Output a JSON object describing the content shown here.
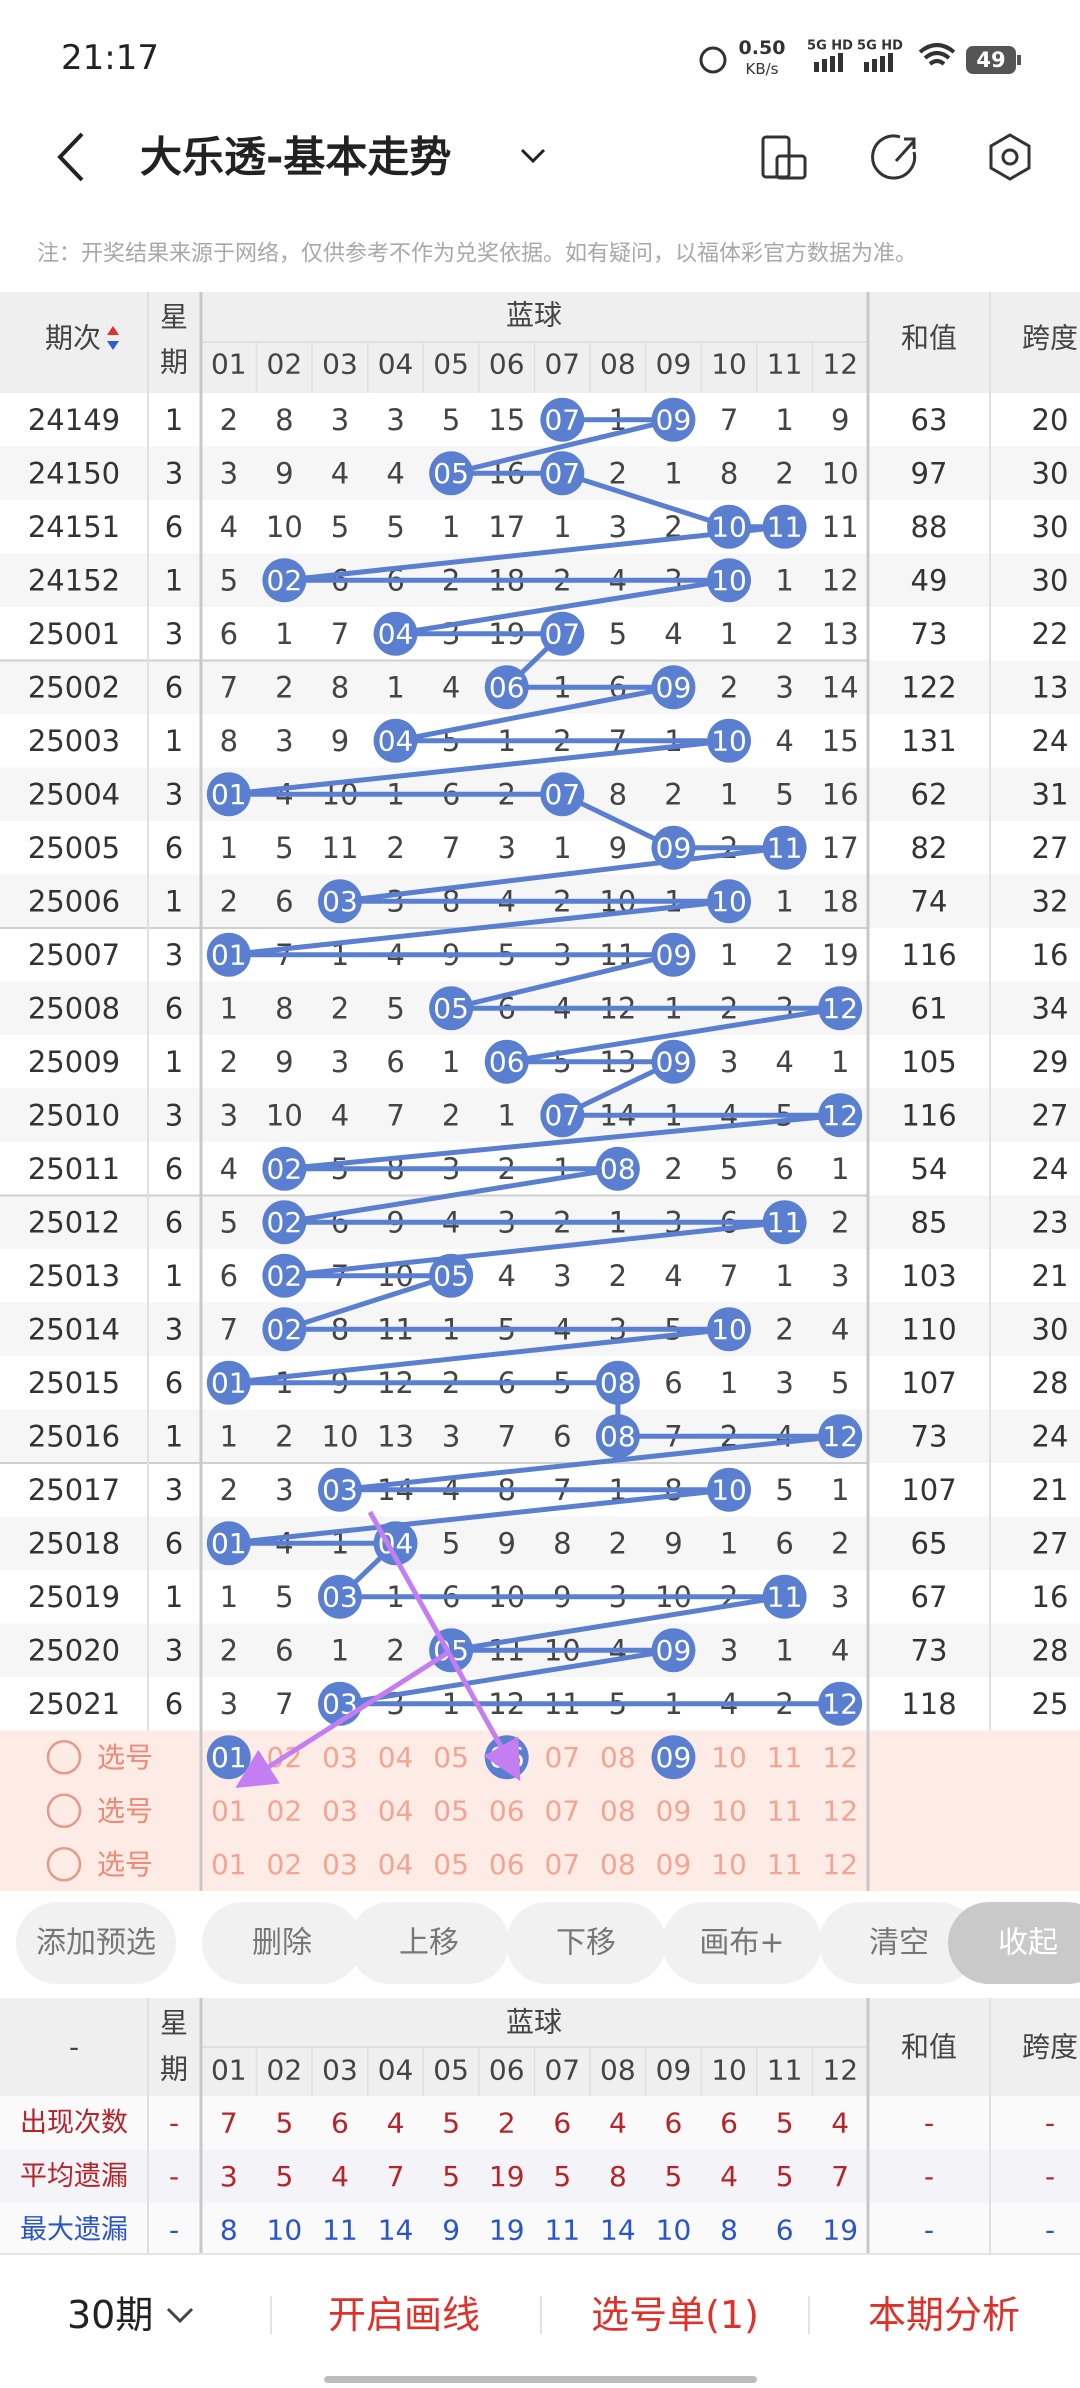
{
  "status_bar": {
    "time": "21:17",
    "net_speed": "0.50",
    "net_unit": "KB/s",
    "signal_1": "5G HD",
    "signal_2": "5G HD",
    "battery": "49"
  },
  "header": {
    "title": "大乐透-基本走势"
  },
  "notice": "注：开奖结果来源于网络，仅供参考不作为兑奖依据。如有疑问，以福体彩官方数据为准。",
  "trend_table": {
    "headers": {
      "period": "期次",
      "weekday_1": "星",
      "weekday_2": "期",
      "blue": "蓝球",
      "sum": "和值",
      "span": "跨度"
    },
    "columns": [
      "01",
      "02",
      "03",
      "04",
      "05",
      "06",
      "07",
      "08",
      "09",
      "10",
      "11",
      "12"
    ],
    "rows": [
      {
        "period": 24149,
        "weekday": 1,
        "cells": [
          2,
          8,
          3,
          3,
          5,
          15,
          "07",
          1,
          "09",
          7,
          1,
          9
        ],
        "sum": 63,
        "span": 20
      },
      {
        "period": 24150,
        "weekday": 3,
        "cells": [
          3,
          9,
          4,
          4,
          "05",
          16,
          "07",
          2,
          1,
          8,
          2,
          10
        ],
        "sum": 97,
        "span": 30
      },
      {
        "period": 24151,
        "weekday": 6,
        "cells": [
          4,
          10,
          5,
          5,
          1,
          17,
          1,
          3,
          2,
          "10",
          "11",
          11
        ],
        "sum": 88,
        "span": 30
      },
      {
        "period": 24152,
        "weekday": 1,
        "cells": [
          5,
          "02",
          6,
          6,
          2,
          18,
          2,
          4,
          3,
          "10",
          1,
          12
        ],
        "sum": 49,
        "span": 30
      },
      {
        "period": 25001,
        "weekday": 3,
        "cells": [
          6,
          1,
          7,
          "04",
          3,
          19,
          "07",
          5,
          4,
          1,
          2,
          13
        ],
        "sum": 73,
        "span": 22
      },
      {
        "period": 25002,
        "weekday": 6,
        "cells": [
          7,
          2,
          8,
          1,
          4,
          "06",
          1,
          6,
          "09",
          2,
          3,
          14
        ],
        "sum": 122,
        "span": 13
      },
      {
        "period": 25003,
        "weekday": 1,
        "cells": [
          8,
          3,
          9,
          "04",
          5,
          1,
          2,
          7,
          1,
          "10",
          4,
          15
        ],
        "sum": 131,
        "span": 24
      },
      {
        "period": 25004,
        "weekday": 3,
        "cells": [
          "01",
          4,
          10,
          1,
          6,
          2,
          "07",
          8,
          2,
          1,
          5,
          16
        ],
        "sum": 62,
        "span": 31
      },
      {
        "period": 25005,
        "weekday": 6,
        "cells": [
          1,
          5,
          11,
          2,
          7,
          3,
          1,
          9,
          "09",
          2,
          "11",
          17
        ],
        "sum": 82,
        "span": 27
      },
      {
        "period": 25006,
        "weekday": 1,
        "cells": [
          2,
          6,
          "03",
          3,
          8,
          4,
          2,
          10,
          1,
          "10",
          1,
          18
        ],
        "sum": 74,
        "span": 32
      },
      {
        "period": 25007,
        "weekday": 3,
        "cells": [
          "01",
          7,
          1,
          4,
          9,
          5,
          3,
          11,
          "09",
          1,
          2,
          19
        ],
        "sum": 116,
        "span": 16
      },
      {
        "period": 25008,
        "weekday": 6,
        "cells": [
          1,
          8,
          2,
          5,
          "05",
          6,
          4,
          12,
          1,
          2,
          3,
          "12"
        ],
        "sum": 61,
        "span": 34
      },
      {
        "period": 25009,
        "weekday": 1,
        "cells": [
          2,
          9,
          3,
          6,
          1,
          "06",
          5,
          13,
          "09",
          3,
          4,
          1
        ],
        "sum": 105,
        "span": 29
      },
      {
        "period": 25010,
        "weekday": 3,
        "cells": [
          3,
          10,
          4,
          7,
          2,
          1,
          "07",
          14,
          1,
          4,
          5,
          "12"
        ],
        "sum": 116,
        "span": 27
      },
      {
        "period": 25011,
        "weekday": 6,
        "cells": [
          4,
          "02",
          5,
          8,
          3,
          2,
          1,
          "08",
          2,
          5,
          6,
          1
        ],
        "sum": 54,
        "span": 24
      },
      {
        "period": 25012,
        "weekday": 6,
        "cells": [
          5,
          "02",
          6,
          9,
          4,
          3,
          2,
          1,
          3,
          6,
          "11",
          2
        ],
        "sum": 85,
        "span": 23
      },
      {
        "period": 25013,
        "weekday": 1,
        "cells": [
          6,
          "02",
          7,
          10,
          "05",
          4,
          3,
          2,
          4,
          7,
          1,
          3
        ],
        "sum": 103,
        "span": 21
      },
      {
        "period": 25014,
        "weekday": 3,
        "cells": [
          7,
          "02",
          8,
          11,
          1,
          5,
          4,
          3,
          5,
          "10",
          2,
          4
        ],
        "sum": 110,
        "span": 30
      },
      {
        "period": 25015,
        "weekday": 6,
        "cells": [
          "01",
          1,
          9,
          12,
          2,
          6,
          5,
          "08",
          6,
          1,
          3,
          5
        ],
        "sum": 107,
        "span": 28
      },
      {
        "period": 25016,
        "weekday": 1,
        "cells": [
          1,
          2,
          10,
          13,
          3,
          7,
          6,
          "08",
          7,
          2,
          4,
          "12"
        ],
        "sum": 73,
        "span": 24
      },
      {
        "period": 25017,
        "weekday": 3,
        "cells": [
          2,
          3,
          "03",
          14,
          4,
          8,
          7,
          1,
          8,
          "10",
          5,
          1
        ],
        "sum": 107,
        "span": 21
      },
      {
        "period": 25018,
        "weekday": 6,
        "cells": [
          "01",
          4,
          1,
          "04",
          5,
          9,
          8,
          2,
          9,
          1,
          6,
          2
        ],
        "sum": 65,
        "span": 27
      },
      {
        "period": 25019,
        "weekday": 1,
        "cells": [
          1,
          5,
          "03",
          1,
          6,
          10,
          9,
          3,
          10,
          2,
          "11",
          3
        ],
        "sum": 67,
        "span": 16
      },
      {
        "period": 25020,
        "weekday": 3,
        "cells": [
          2,
          6,
          1,
          2,
          "05",
          11,
          10,
          4,
          "09",
          3,
          1,
          4
        ],
        "sum": 73,
        "span": 28
      },
      {
        "period": 25021,
        "weekday": 6,
        "cells": [
          3,
          7,
          "03",
          3,
          1,
          12,
          11,
          5,
          1,
          4,
          2,
          "12"
        ],
        "sum": 118,
        "span": 25
      }
    ]
  },
  "selection": [
    {
      "label": "选号",
      "selected": [
        true,
        false,
        false,
        false,
        false,
        true,
        false,
        false,
        true,
        false,
        false,
        false
      ]
    },
    {
      "label": "选号",
      "selected": [
        false,
        false,
        false,
        false,
        false,
        false,
        false,
        false,
        false,
        false,
        false,
        false
      ]
    },
    {
      "label": "选号",
      "selected": [
        false,
        false,
        false,
        false,
        false,
        false,
        false,
        false,
        false,
        false,
        false,
        false
      ]
    }
  ],
  "buttons": [
    "添加预选",
    "删除",
    "上移",
    "下移",
    "画布+",
    "清空",
    "收起"
  ],
  "stats": {
    "corner": "-",
    "rows": [
      {
        "label": "出现次数",
        "color": "#b8232a",
        "lead": "-",
        "values": [
          7,
          5,
          6,
          4,
          5,
          2,
          6,
          4,
          6,
          6,
          5,
          4
        ],
        "sum": "-",
        "span": "-"
      },
      {
        "label": "平均遗漏",
        "color": "#b8232a",
        "lead": "-",
        "values": [
          3,
          5,
          4,
          7,
          5,
          19,
          5,
          8,
          5,
          4,
          5,
          7
        ],
        "sum": "-",
        "span": "-"
      },
      {
        "label": "最大遗漏",
        "color": "#2a55c8",
        "lead": "-",
        "values": [
          8,
          10,
          11,
          14,
          9,
          19,
          11,
          14,
          10,
          8,
          6,
          19
        ],
        "sum": "-",
        "span": "-"
      }
    ]
  },
  "bottom_nav": {
    "period_select": "30期",
    "items": [
      "开启画线",
      "选号单(1)",
      "本期分析"
    ]
  }
}
